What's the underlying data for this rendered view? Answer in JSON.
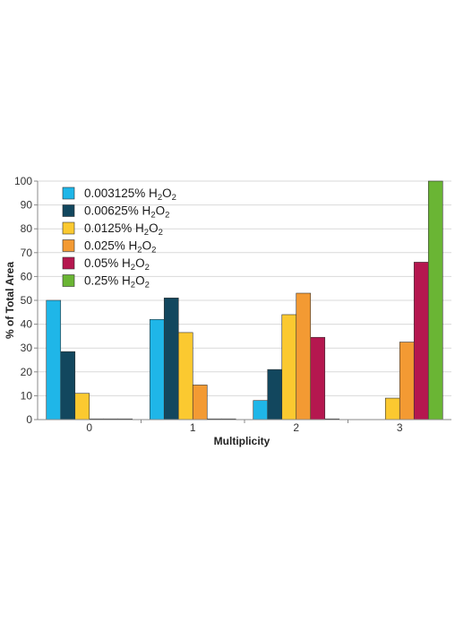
{
  "chart_data": {
    "type": "bar",
    "categories": [
      "0",
      "1",
      "2",
      "3"
    ],
    "xlabel": "Multiplicity",
    "ylabel": "% of Total Area",
    "ylim": [
      0,
      100
    ],
    "yticks": [
      0,
      10,
      20,
      30,
      40,
      50,
      60,
      70,
      80,
      90,
      100
    ],
    "grid": true,
    "legend_position": "top-left",
    "series": [
      {
        "name": "0.003125% H2O2",
        "label_main": "0.003125% H",
        "label_sub1": "2",
        "label_mid": "O",
        "label_sub2": "2",
        "color": "#1fb6e8",
        "values": [
          50,
          42,
          8,
          null
        ]
      },
      {
        "name": "0.00625% H2O2",
        "label_main": "0.00625% H",
        "label_sub1": "2",
        "label_mid": "O",
        "label_sub2": "2",
        "color": "#12475e",
        "values": [
          28.5,
          51,
          21,
          null
        ]
      },
      {
        "name": "0.0125% H2O2",
        "label_main": "0.0125% H",
        "label_sub1": "2",
        "label_mid": "O",
        "label_sub2": "2",
        "color": "#fbc930",
        "values": [
          11,
          36.5,
          44,
          9
        ]
      },
      {
        "name": "0.025% H2O2",
        "label_main": "0.025% H",
        "label_sub1": "2",
        "label_mid": "O",
        "label_sub2": "2",
        "color": "#f39a33",
        "values": [
          0,
          14.5,
          53,
          32.5
        ]
      },
      {
        "name": "0.05% H2O2",
        "label_main": "0.05% H",
        "label_sub1": "2",
        "label_mid": "O",
        "label_sub2": "2",
        "color": "#b5174f",
        "values": [
          0,
          0,
          34.5,
          66
        ]
      },
      {
        "name": "0.25% H2O2",
        "label_main": "0.25% H",
        "label_sub1": "2",
        "label_mid": "O",
        "label_sub2": "2",
        "color": "#6ab534",
        "values": [
          0,
          0,
          0,
          100
        ]
      }
    ]
  }
}
